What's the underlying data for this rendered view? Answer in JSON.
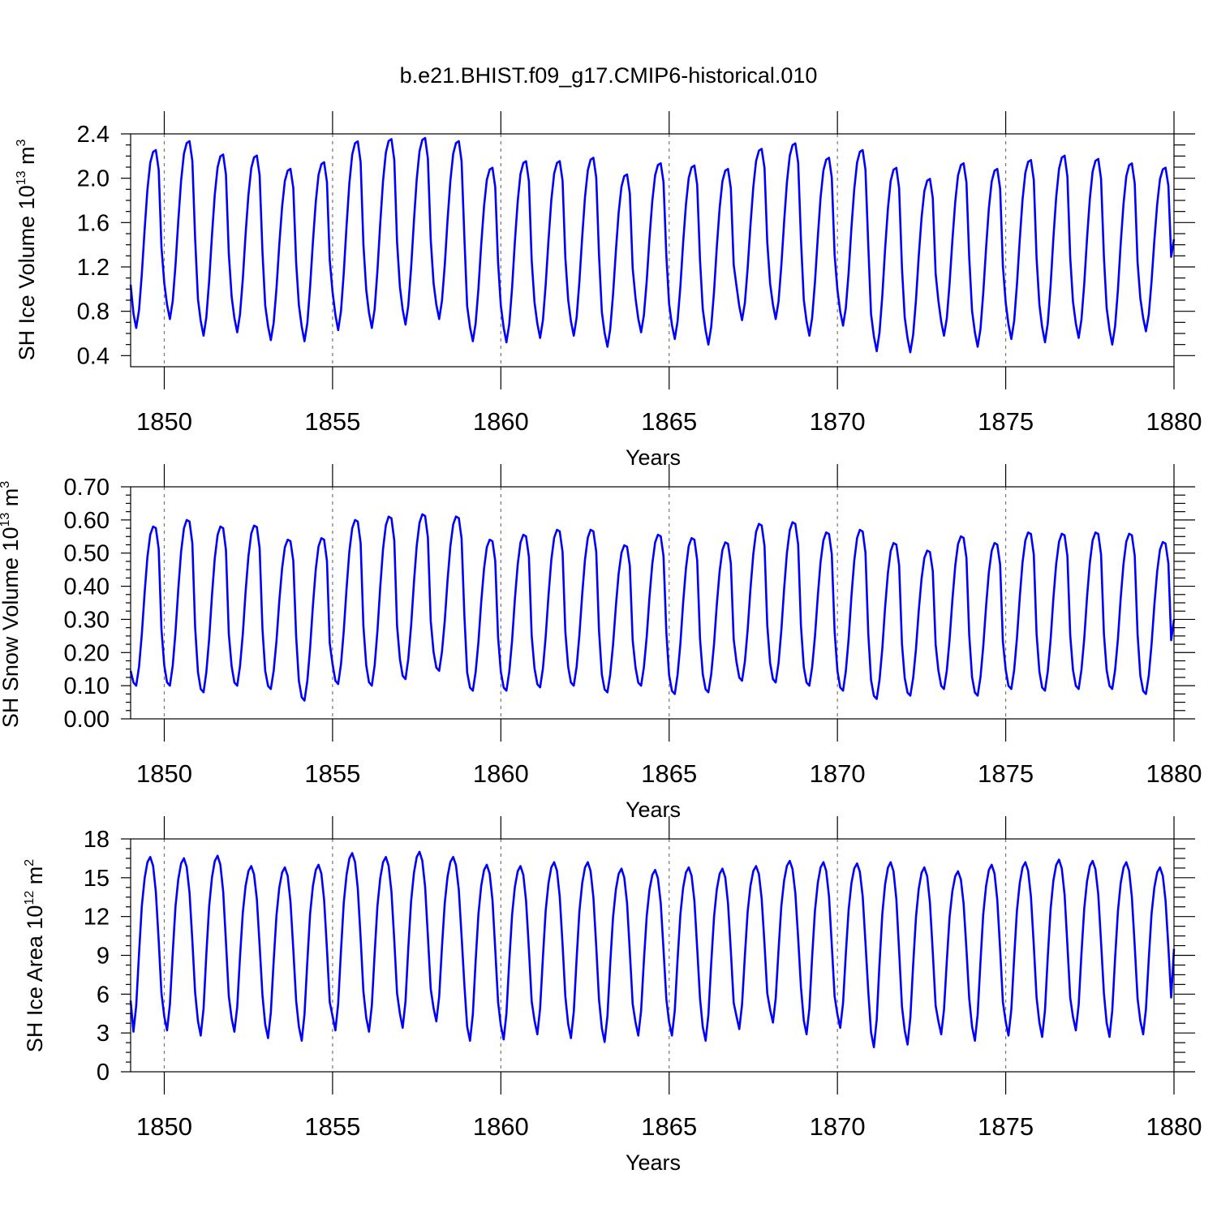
{
  "figure_title": "b.e21.BHIST.f09_g17.CMIP6-historical.010",
  "line_color": "#0000ff",
  "chart_data": [
    {
      "type": "line",
      "id": "ice-volume",
      "ylabel_main": "SH Ice Volume 10",
      "ylabel_exp1": "13",
      "ylabel_unit": " m",
      "ylabel_exp2": "3",
      "xlabel": "Years",
      "xlim": [
        1849,
        1880
      ],
      "ylim": [
        0.3,
        2.4
      ],
      "yticks": [
        0.4,
        0.8,
        1.2,
        1.6,
        2.0,
        2.4
      ],
      "ytick_labels": [
        "0.4",
        "0.8",
        "1.2",
        "1.6",
        "2.0",
        "2.4"
      ],
      "xticks": [
        1850,
        1855,
        1860,
        1865,
        1870,
        1875,
        1880
      ],
      "xtick_labels": [
        "1850",
        "1855",
        "1860",
        "1865",
        "1870",
        "1875",
        "1880"
      ],
      "grid_x_dashed": true,
      "start_year": 1849,
      "monthly_cycle_shape": [
        0.2,
        0.08,
        0.0,
        0.1,
        0.3,
        0.55,
        0.77,
        0.92,
        0.98,
        0.99,
        0.88,
        0.45
      ],
      "annual_min": [
        0.65,
        0.73,
        0.58,
        0.61,
        0.54,
        0.53,
        0.63,
        0.65,
        0.68,
        0.73,
        0.53,
        0.52,
        0.56,
        0.58,
        0.48,
        0.61,
        0.55,
        0.5,
        0.72,
        0.73,
        0.58,
        0.67,
        0.44,
        0.43,
        0.58,
        0.48,
        0.55,
        0.52,
        0.56,
        0.5,
        0.62
      ],
      "annual_max": [
        2.27,
        2.35,
        2.23,
        2.22,
        2.1,
        2.16,
        2.35,
        2.37,
        2.38,
        2.35,
        2.11,
        2.17,
        2.17,
        2.2,
        2.05,
        2.15,
        2.13,
        2.1,
        2.28,
        2.33,
        2.2,
        2.27,
        2.11,
        2.01,
        2.15,
        2.1,
        2.18,
        2.22,
        2.19,
        2.15,
        2.11
      ],
      "start_value": 1.04,
      "end_value": 1.45
    },
    {
      "type": "line",
      "id": "snow-volume",
      "ylabel_main": "SH Snow Volume 10",
      "ylabel_exp1": "13",
      "ylabel_unit": " m",
      "ylabel_exp2": "3",
      "xlabel": "Years",
      "xlim": [
        1849,
        1880
      ],
      "ylim": [
        0.0,
        0.7
      ],
      "yticks": [
        0.0,
        0.1,
        0.2,
        0.3,
        0.4,
        0.5,
        0.6,
        0.7
      ],
      "ytick_labels": [
        "0.00",
        "0.10",
        "0.20",
        "0.30",
        "0.40",
        "0.50",
        "0.60",
        "0.70"
      ],
      "xticks": [
        1850,
        1855,
        1860,
        1865,
        1870,
        1875,
        1880
      ],
      "xtick_labels": [
        "1850",
        "1855",
        "1860",
        "1865",
        "1870",
        "1875",
        "1880"
      ],
      "grid_x_dashed": true,
      "start_year": 1849,
      "monthly_cycle_shape": [
        0.12,
        0.02,
        0.0,
        0.12,
        0.32,
        0.58,
        0.8,
        0.94,
        0.99,
        0.98,
        0.85,
        0.35
      ],
      "annual_min": [
        0.1,
        0.1,
        0.08,
        0.1,
        0.09,
        0.055,
        0.105,
        0.1,
        0.12,
        0.145,
        0.085,
        0.085,
        0.095,
        0.1,
        0.08,
        0.1,
        0.075,
        0.08,
        0.115,
        0.11,
        0.1,
        0.085,
        0.06,
        0.07,
        0.09,
        0.07,
        0.09,
        0.085,
        0.09,
        0.09,
        0.075
      ],
      "annual_max": [
        0.585,
        0.605,
        0.585,
        0.588,
        0.545,
        0.55,
        0.605,
        0.615,
        0.622,
        0.615,
        0.545,
        0.56,
        0.575,
        0.575,
        0.528,
        0.56,
        0.55,
        0.537,
        0.593,
        0.598,
        0.567,
        0.575,
        0.535,
        0.512,
        0.555,
        0.535,
        0.567,
        0.563,
        0.567,
        0.563,
        0.538
      ],
      "start_value": 0.145,
      "end_value": 0.3
    },
    {
      "type": "line",
      "id": "ice-area",
      "ylabel_main": "SH Ice Area 10",
      "ylabel_exp1": "12",
      "ylabel_unit": " m",
      "ylabel_exp2": "2",
      "xlabel": "Years",
      "xlim": [
        1849,
        1880
      ],
      "ylim": [
        0,
        18
      ],
      "yticks": [
        0,
        3,
        6,
        9,
        12,
        15,
        18
      ],
      "ytick_labels": [
        "0",
        "3",
        "6",
        "9",
        "12",
        "15",
        "18"
      ],
      "xticks": [
        1850,
        1855,
        1860,
        1865,
        1870,
        1875,
        1880
      ],
      "xtick_labels": [
        "1850",
        "1855",
        "1860",
        "1865",
        "1870",
        "1875",
        "1880"
      ],
      "grid_x_dashed": true,
      "start_year": 1849,
      "monthly_cycle_shape": [
        0.08,
        0.0,
        0.15,
        0.45,
        0.72,
        0.88,
        0.97,
        1.0,
        0.95,
        0.8,
        0.52,
        0.22
      ],
      "annual_min": [
        3.1,
        3.2,
        2.8,
        3.1,
        2.6,
        2.4,
        3.2,
        3.1,
        3.4,
        3.9,
        2.4,
        2.5,
        2.9,
        2.6,
        2.3,
        2.8,
        2.8,
        2.4,
        3.3,
        3.8,
        2.9,
        3.4,
        1.9,
        2.1,
        2.9,
        2.4,
        2.8,
        2.7,
        3.2,
        2.7,
        2.9
      ],
      "annual_max": [
        16.6,
        16.5,
        16.7,
        15.9,
        15.8,
        16.0,
        16.9,
        16.6,
        17.0,
        16.6,
        16.0,
        15.9,
        16.2,
        16.2,
        15.7,
        15.6,
        15.8,
        15.7,
        15.9,
        16.3,
        16.2,
        16.1,
        16.2,
        15.8,
        15.5,
        16.0,
        16.2,
        16.4,
        16.3,
        16.2,
        15.8
      ],
      "start_value": 5.5,
      "end_value": 9.5
    }
  ]
}
